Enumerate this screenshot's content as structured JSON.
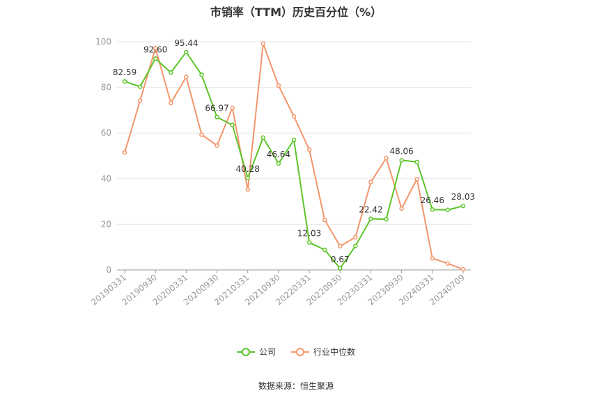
{
  "title": "市销率（TTM）历史百分位（%）",
  "source": "数据来源：恒生聚源",
  "colors": {
    "company": "#5cc528",
    "industry": "#f4956a",
    "grid": "#e6e6e6",
    "axis": "#999999"
  },
  "legend": {
    "company": "公司",
    "industry": "行业中位数"
  },
  "chart_data": {
    "type": "line",
    "title": "市销率（TTM）历史百分位（%）",
    "ylim": [
      0,
      100
    ],
    "yticks": [
      0,
      20,
      40,
      60,
      80,
      100
    ],
    "grid": true,
    "legend_position": "bottom",
    "x": [
      "20190331",
      "20190630",
      "20190930",
      "20191231",
      "20200331",
      "20200630",
      "20200930",
      "20201231",
      "20210331",
      "20210630",
      "20210930",
      "20211231",
      "20220331",
      "20220630",
      "20220930",
      "20221231",
      "20230331",
      "20230630",
      "20230930",
      "20231231",
      "20240331",
      "20240630",
      "20240709"
    ],
    "x_tick_labels": [
      "20190331",
      "20190930",
      "20200331",
      "20200930",
      "20210331",
      "20210930",
      "20220331",
      "20220930",
      "20230331",
      "20230930",
      "20240331",
      "20240709"
    ],
    "series": [
      {
        "name": "公司",
        "values": [
          82.59,
          80.3,
          92.6,
          86.5,
          95.44,
          85.5,
          66.97,
          63.5,
          40.28,
          58.0,
          46.64,
          57.0,
          12.03,
          8.8,
          0.67,
          10.5,
          22.42,
          22.2,
          48.06,
          47.3,
          26.46,
          26.3,
          28.03
        ],
        "labels": {
          "0": "82.59",
          "2": "92.60",
          "4": "95.44",
          "6": "66.97",
          "8": "40.28",
          "10": "46.64",
          "12": "12.03",
          "14": "0.67",
          "16": "22.42",
          "18": "48.06",
          "20": "26.46",
          "22": "28.03"
        }
      },
      {
        "name": "行业中位数",
        "values": [
          51.5,
          74.2,
          97.2,
          73.2,
          84.6,
          59.3,
          54.5,
          71.0,
          35.2,
          99.2,
          80.8,
          67.3,
          52.7,
          21.9,
          10.4,
          14.3,
          38.5,
          49.0,
          26.9,
          39.8,
          5.1,
          2.8,
          0.3
        ]
      }
    ]
  }
}
